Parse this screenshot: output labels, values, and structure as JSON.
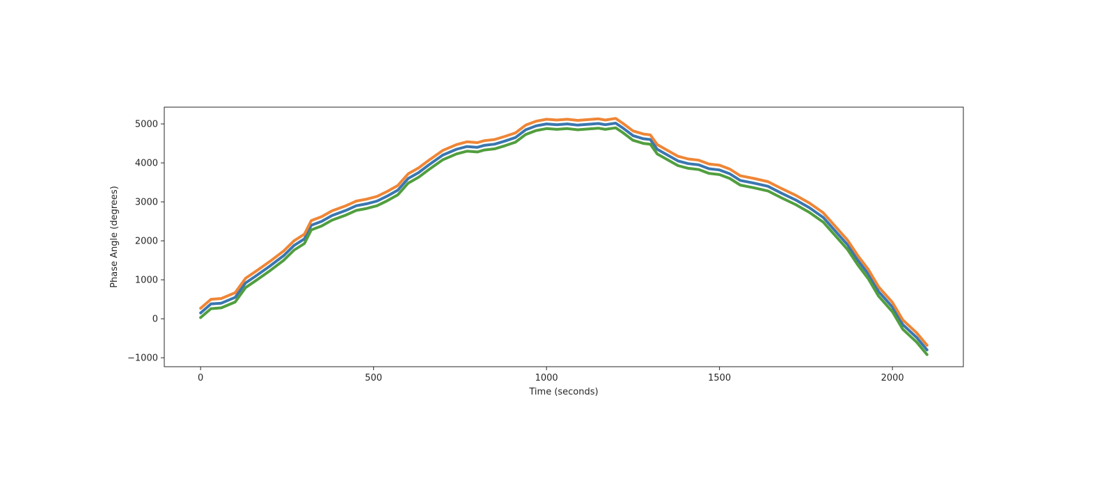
{
  "chart_data": {
    "type": "line",
    "title": "",
    "xlabel": "Time (seconds)",
    "ylabel": "Phase Angle (degrees)",
    "xlim": [
      -105,
      2205
    ],
    "ylim": [
      -1230,
      5430
    ],
    "xticks": [
      0,
      500,
      1000,
      1500,
      2000
    ],
    "yticks": [
      -1000,
      0,
      1000,
      2000,
      3000,
      4000,
      5000
    ],
    "xtick_labels": [
      "0",
      "500",
      "1000",
      "1500",
      "2000"
    ],
    "ytick_labels": [
      "−1000",
      "0",
      "1000",
      "2000",
      "3000",
      "4000",
      "5000"
    ],
    "grid": false,
    "legend": false,
    "x": [
      0,
      30,
      60,
      100,
      130,
      160,
      200,
      240,
      270,
      300,
      320,
      350,
      380,
      420,
      450,
      480,
      510,
      540,
      570,
      600,
      630,
      660,
      700,
      740,
      770,
      800,
      820,
      850,
      880,
      910,
      940,
      970,
      1000,
      1030,
      1060,
      1090,
      1120,
      1150,
      1170,
      1200,
      1220,
      1250,
      1280,
      1300,
      1320,
      1350,
      1380,
      1410,
      1440,
      1470,
      1500,
      1530,
      1560,
      1600,
      1640,
      1680,
      1720,
      1760,
      1800,
      1840,
      1870,
      1900,
      1930,
      1960,
      2000,
      2030,
      2070,
      2100
    ],
    "series": [
      {
        "color": "#3a76af",
        "values": [
          150,
          380,
          400,
          550,
          920,
          1100,
          1350,
          1620,
          1880,
          2050,
          2400,
          2500,
          2650,
          2780,
          2900,
          2950,
          3020,
          3150,
          3300,
          3600,
          3750,
          3950,
          4200,
          4350,
          4420,
          4400,
          4450,
          4480,
          4560,
          4650,
          4850,
          4950,
          5000,
          4980,
          5000,
          4970,
          4990,
          5010,
          4980,
          5020,
          4900,
          4700,
          4620,
          4600,
          4350,
          4200,
          4050,
          3980,
          3950,
          3850,
          3820,
          3720,
          3550,
          3480,
          3400,
          3220,
          3050,
          2850,
          2600,
          2200,
          1900,
          1500,
          1150,
          700,
          300,
          -150,
          -480,
          -800
        ]
      },
      {
        "color": "#ef8636",
        "values": [
          270,
          500,
          520,
          670,
          1040,
          1220,
          1470,
          1740,
          2000,
          2170,
          2520,
          2620,
          2770,
          2900,
          3020,
          3070,
          3140,
          3270,
          3420,
          3720,
          3870,
          4070,
          4320,
          4470,
          4540,
          4520,
          4570,
          4600,
          4680,
          4770,
          4970,
          5070,
          5120,
          5100,
          5120,
          5090,
          5110,
          5130,
          5100,
          5140,
          5020,
          4820,
          4740,
          4720,
          4470,
          4320,
          4170,
          4100,
          4070,
          3970,
          3940,
          3840,
          3670,
          3600,
          3520,
          3340,
          3170,
          2970,
          2720,
          2320,
          2020,
          1620,
          1270,
          820,
          420,
          -30,
          -360,
          -680
        ]
      },
      {
        "color": "#519e3e",
        "values": [
          30,
          260,
          280,
          430,
          800,
          980,
          1230,
          1500,
          1760,
          1930,
          2280,
          2380,
          2530,
          2660,
          2780,
          2830,
          2900,
          3030,
          3180,
          3480,
          3630,
          3830,
          4080,
          4230,
          4300,
          4280,
          4330,
          4360,
          4440,
          4530,
          4730,
          4830,
          4880,
          4860,
          4880,
          4850,
          4870,
          4890,
          4860,
          4900,
          4780,
          4580,
          4500,
          4480,
          4230,
          4080,
          3930,
          3860,
          3830,
          3730,
          3700,
          3600,
          3430,
          3360,
          3280,
          3100,
          2930,
          2730,
          2480,
          2080,
          1780,
          1380,
          1030,
          580,
          180,
          -270,
          -600,
          -920
        ]
      }
    ]
  }
}
